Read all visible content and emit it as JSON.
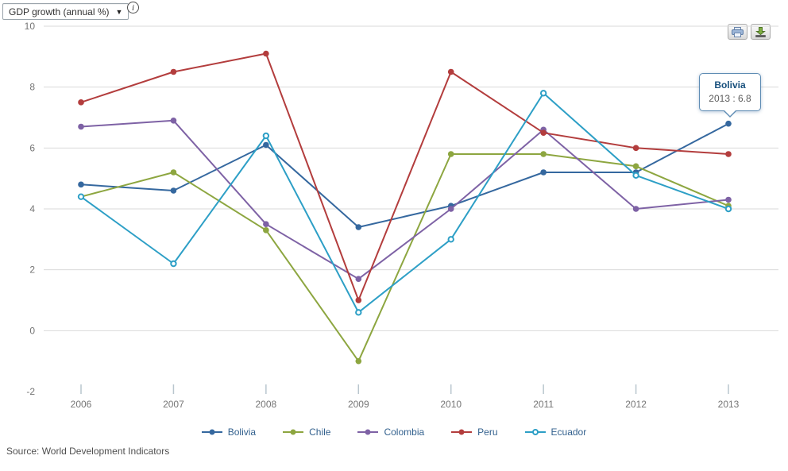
{
  "header": {
    "indicator_dropdown": {
      "value": "GDP growth (annual %)",
      "arrow": "▼"
    },
    "info_icon_glyph": "i"
  },
  "toolbar": {
    "print_button": "print",
    "download_button": "download"
  },
  "chart_data": {
    "type": "line",
    "title": "GDP growth (annual %)",
    "x": [
      "2006",
      "2007",
      "2008",
      "2009",
      "2010",
      "2011",
      "2012",
      "2013"
    ],
    "series": [
      {
        "name": "Bolivia",
        "color": "#35689f",
        "marker": "filled",
        "values": [
          4.8,
          4.6,
          6.1,
          3.4,
          4.1,
          5.2,
          5.2,
          6.8
        ]
      },
      {
        "name": "Chile",
        "color": "#8da640",
        "marker": "filled",
        "values": [
          4.4,
          5.2,
          3.3,
          -1.0,
          5.8,
          5.8,
          5.4,
          4.1
        ]
      },
      {
        "name": "Colombia",
        "color": "#7e62a5",
        "marker": "filled",
        "values": [
          6.7,
          6.9,
          3.5,
          1.7,
          4.0,
          6.6,
          4.0,
          4.3
        ]
      },
      {
        "name": "Peru",
        "color": "#b33d3d",
        "marker": "filled",
        "values": [
          7.5,
          8.5,
          9.1,
          1.0,
          8.5,
          6.5,
          6.0,
          5.8
        ]
      },
      {
        "name": "Ecuador",
        "color": "#2d9fc6",
        "marker": "open",
        "values": [
          4.4,
          2.2,
          6.4,
          0.6,
          3.0,
          7.8,
          5.1,
          4.0
        ]
      }
    ],
    "ylim": [
      -2,
      10
    ],
    "ytick_labels": [
      10,
      8,
      6,
      4,
      2,
      0,
      -2
    ],
    "gridline_values": [
      10,
      8,
      6,
      4,
      2,
      0
    ],
    "grid": "horizontal",
    "legend_position": "bottom",
    "axis_label_color": "#757575",
    "gridline_color": "#d9d9d9",
    "tick_color": "#b9c6ce",
    "legend_text_color": "#33618e"
  },
  "tooltip": {
    "title": "Bolivia",
    "value": "2013 : 6.8",
    "series": "Bolivia",
    "year": "2013",
    "y": 6.8
  },
  "footer": {
    "source": "Source: World Development Indicators"
  }
}
